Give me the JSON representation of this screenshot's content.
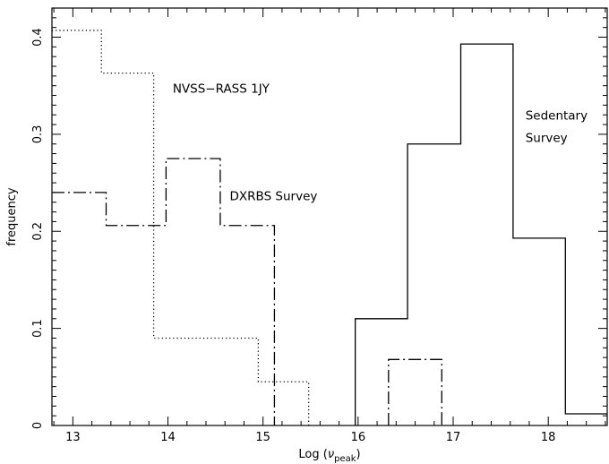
{
  "chart_data": {
    "type": "step",
    "xlabel": "Log (ν_peak)",
    "xlabel_main": "Log (",
    "xlabel_nu": "ν",
    "xlabel_sub": "peak",
    "xlabel_close": ")",
    "ylabel": "frequency",
    "xlim": [
      12.78,
      18.62
    ],
    "ylim": [
      0,
      0.43
    ],
    "x_ticks": [
      13,
      14,
      15,
      16,
      17,
      18
    ],
    "x_tick_labels": [
      "13",
      "14",
      "15",
      "16",
      "17",
      "18"
    ],
    "y_ticks": [
      0,
      0.1,
      0.2,
      0.3,
      0.4
    ],
    "y_tick_labels": [
      "0",
      "0.1",
      "0.2",
      "0.3",
      "0.4"
    ],
    "series": [
      {
        "name": "NVSS-RASS 1JY",
        "style": "dotted",
        "edges": [
          12.78,
          13.3,
          13.85,
          14.95,
          15.48
        ],
        "values": [
          0.407,
          0.363,
          0.09,
          0.045
        ]
      },
      {
        "name": "DXRBS Survey",
        "style": "dashdot",
        "edges": [
          12.78,
          13.35,
          13.98,
          14.55,
          15.12
        ],
        "values": [
          0.24,
          0.206,
          0.275,
          0.206
        ],
        "extra_bins": [
          {
            "edges": [
              16.32,
              16.88
            ],
            "value": 0.068
          }
        ]
      },
      {
        "name": "Sedentary Survey",
        "style": "solid",
        "edges": [
          15.97,
          16.52,
          17.08,
          17.63,
          18.18,
          18.62
        ],
        "values": [
          0.11,
          0.29,
          0.393,
          0.193,
          0.012
        ]
      }
    ],
    "annotations": [
      {
        "text": "NVSS−RASS 1JY",
        "x": 14.05,
        "y": 0.343,
        "series": 0
      },
      {
        "text": "DXRBS Survey",
        "x": 14.65,
        "y": 0.232,
        "series": 1
      },
      {
        "text": "Sedentary",
        "x": 17.76,
        "y": 0.315,
        "series": 2
      },
      {
        "text": "Survey",
        "x": 17.76,
        "y": 0.292,
        "series": 2
      }
    ]
  }
}
